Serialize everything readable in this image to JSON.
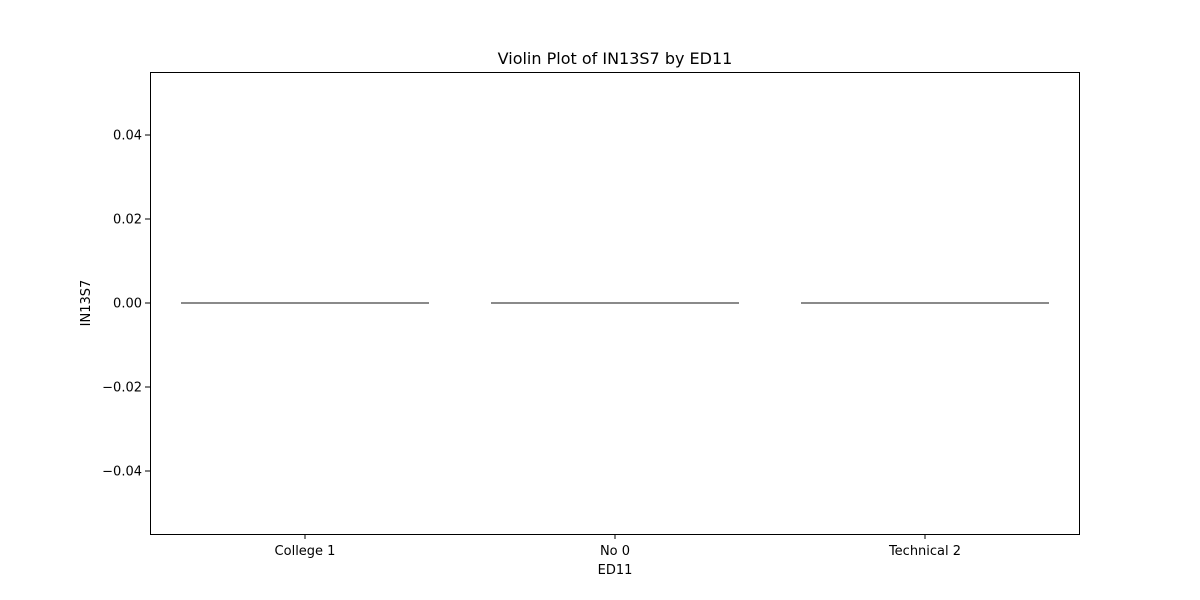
{
  "chart_data": {
    "type": "violin",
    "title": "Violin Plot of IN13S7 by ED11",
    "xlabel": "ED11",
    "ylabel": "IN13S7",
    "categories": [
      "College 1",
      "No 0",
      "Technical 2"
    ],
    "values": [
      0,
      0,
      0
    ],
    "ylim": [
      -0.055,
      0.055
    ],
    "yticks": [
      -0.04,
      -0.02,
      0.0,
      0.02,
      0.04
    ],
    "ytick_labels": [
      "−0.04",
      "−0.02",
      "0.00",
      "0.02",
      "0.04"
    ],
    "grid": false,
    "violin_color": "#444444"
  }
}
